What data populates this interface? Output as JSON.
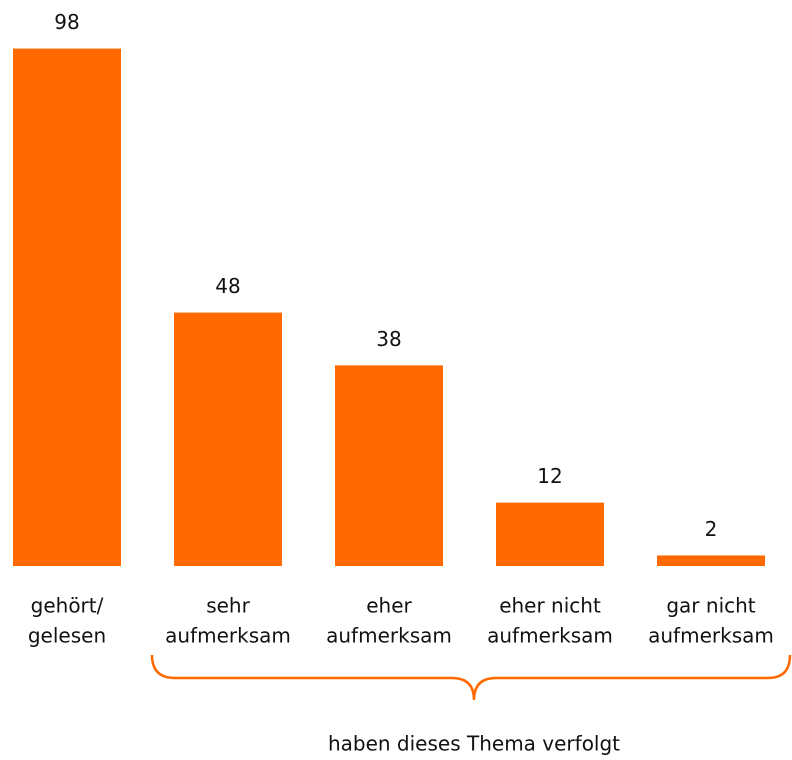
{
  "chart_data": {
    "type": "bar",
    "categories": [
      [
        "gehört/",
        "gelesen"
      ],
      [
        "sehr",
        "aufmerksam"
      ],
      [
        "eher",
        "aufmerksam"
      ],
      [
        "eher nicht",
        "aufmerksam"
      ],
      [
        "gar nicht",
        "aufmerksam"
      ]
    ],
    "values": [
      98,
      48,
      38,
      12,
      2
    ],
    "color": "#ff6a00",
    "annotation": "haben dieses Thema verfolgt"
  }
}
